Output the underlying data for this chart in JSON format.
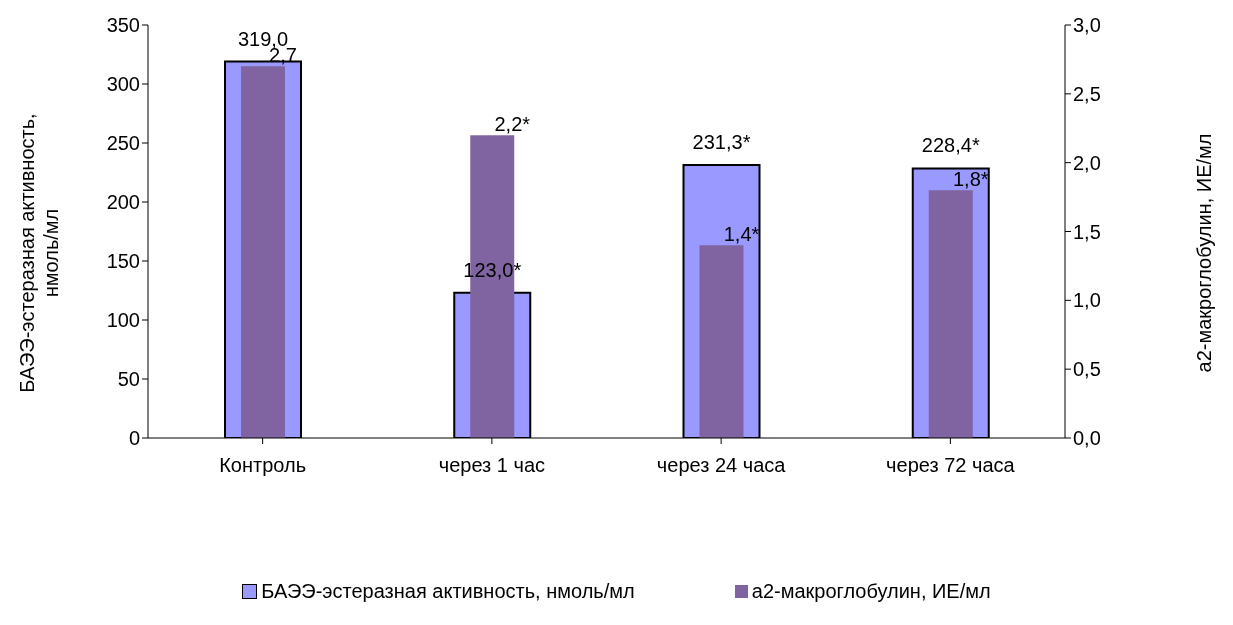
{
  "chart_data": {
    "type": "bar",
    "categories": [
      "Контроль",
      "через 1 час",
      "через 24 часа",
      "через 72 часа"
    ],
    "series": [
      {
        "name": "БАЭЭ-эстеразная активность, нмоль/мл",
        "color": "#9999ff",
        "values": [
          319.0,
          123.0,
          231.3,
          228.4
        ],
        "value_labels": [
          "319,0",
          "123,0*",
          "231,3*",
          "228,4*"
        ]
      },
      {
        "name": "а2-макроглобулин, ИЕ/мл",
        "color": "#8064a2",
        "axis": "y2",
        "values": [
          2.7,
          2.2,
          1.4,
          1.8
        ],
        "value_labels": [
          "2,7",
          "2,2*",
          "1,4*",
          "1,8*"
        ]
      }
    ],
    "ylabel": "БАЭЭ-эстеразная активность, нмоль/мл",
    "y2label": "а2-макроглобулин,  ИЕ/мл",
    "ylim": [
      0,
      350
    ],
    "yticks": [
      0,
      50,
      100,
      150,
      200,
      250,
      300,
      350
    ],
    "y2lim": [
      0,
      3
    ],
    "y2ticks": [
      {
        "value": 0,
        "label": "0,0"
      },
      {
        "value": 0.5,
        "label": "0,5"
      },
      {
        "value": 1,
        "label": "1,0"
      },
      {
        "value": 1.5,
        "label": "1,5"
      },
      {
        "value": 2,
        "label": "2,0"
      },
      {
        "value": 2.5,
        "label": "2,5"
      },
      {
        "value": 3,
        "label": "3,0"
      }
    ],
    "grid": false,
    "legend": "bottom"
  }
}
